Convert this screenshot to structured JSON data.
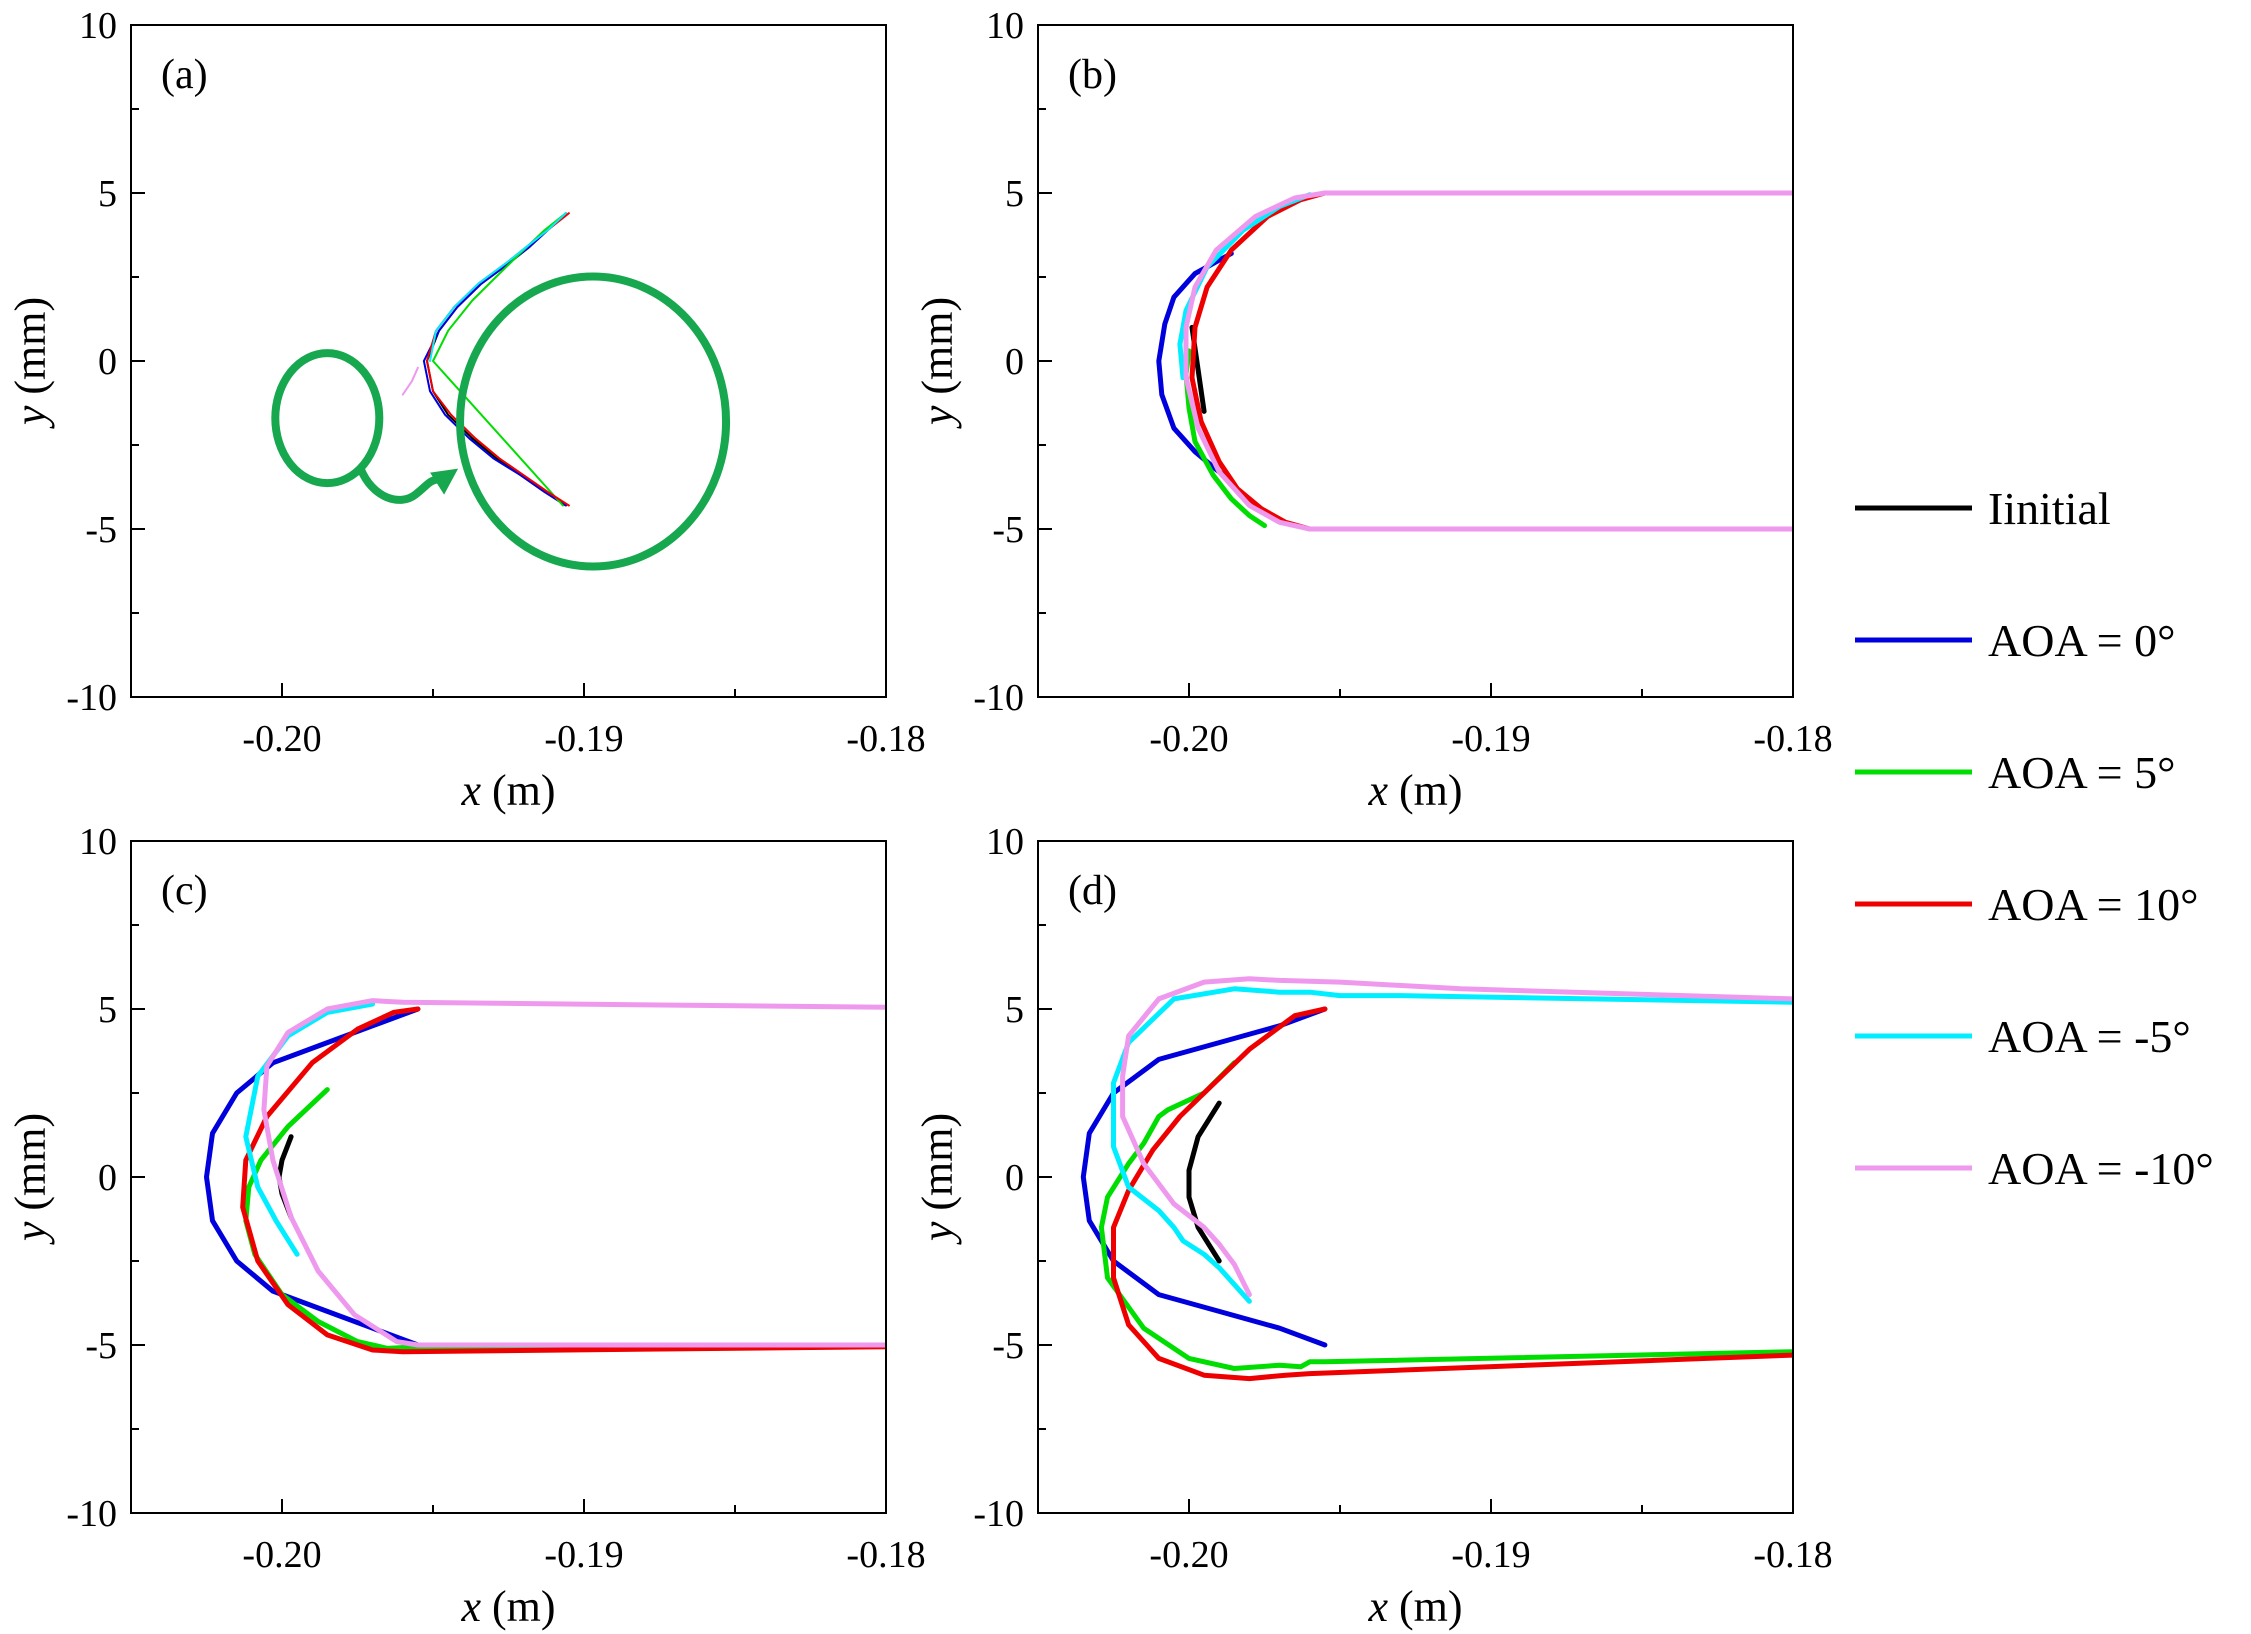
{
  "figure": {
    "legend": [
      {
        "label": "Iinitial",
        "color": "#000000"
      },
      {
        "label": "AOA = 0°",
        "color": "#0000dd"
      },
      {
        "label": "AOA = 5°",
        "color": "#00dd00"
      },
      {
        "label": "AOA = 10°",
        "color": "#ee0000"
      },
      {
        "label": "AOA = -5°",
        "color": "#00eeff"
      },
      {
        "label": "AOA = -10°",
        "color": "#ee99ee"
      }
    ],
    "annotation_color": "#17a84f"
  },
  "chart_data": [
    {
      "type": "line",
      "panel": "(a)",
      "xlabel_var": "x",
      "xlabel_unit": " (m)",
      "ylabel_var": "y",
      "ylabel_unit": " (mm)",
      "xlim": [
        -0.205,
        -0.18
      ],
      "ylim": [
        -10,
        10
      ],
      "xticks": [
        -0.2,
        -0.19,
        -0.18
      ],
      "xtick_labels": [
        "-0.20",
        "-0.19",
        "-0.18"
      ],
      "yticks": [
        -10,
        -5,
        0,
        5,
        10
      ],
      "ytick_labels": [
        "-10",
        "-5",
        "0",
        "5",
        "10"
      ],
      "series": [
        {
          "name": "Iinitial",
          "color": "#000000",
          "x": [
            -0.1906,
            -0.1912,
            -0.1918,
            -0.1925,
            -0.1934,
            -0.1942,
            -0.1948,
            -0.1952,
            -0.195,
            -0.1945,
            -0.1937,
            -0.1929,
            -0.1921,
            -0.1913,
            -0.1906
          ],
          "y": [
            4.4,
            3.9,
            3.4,
            2.9,
            2.3,
            1.6,
            0.9,
            0,
            -0.9,
            -1.6,
            -2.3,
            -2.9,
            -3.4,
            -3.9,
            -4.3
          ]
        },
        {
          "name": "AOA = 0°",
          "color": "#0000dd",
          "x": [
            -0.1906,
            -0.1912,
            -0.1918,
            -0.1925,
            -0.1934,
            -0.1942,
            -0.1948,
            -0.1953,
            -0.1951,
            -0.1946,
            -0.1938,
            -0.193,
            -0.1921,
            -0.1913,
            -0.1906
          ],
          "y": [
            4.4,
            3.9,
            3.4,
            2.9,
            2.3,
            1.6,
            0.9,
            0,
            -0.9,
            -1.6,
            -2.3,
            -2.9,
            -3.4,
            -3.9,
            -4.3
          ]
        },
        {
          "name": "AOA = 5°",
          "color": "#00dd00",
          "x": [
            -0.1906,
            -0.1913,
            -0.192,
            -0.1928,
            -0.1937,
            -0.1945,
            -0.195,
            -0.1907
          ],
          "y": [
            4.4,
            3.9,
            3.3,
            2.6,
            1.8,
            0.9,
            0,
            -4.3
          ]
        },
        {
          "name": "AOA = 10°",
          "color": "#ee0000",
          "x": [
            -0.1905,
            -0.1912,
            -0.1919,
            -0.1926,
            -0.1935,
            -0.1943,
            -0.1949,
            -0.1952,
            -0.195,
            -0.1944,
            -0.1936,
            -0.1928,
            -0.192,
            -0.1912,
            -0.1905
          ],
          "y": [
            4.4,
            3.9,
            3.4,
            2.9,
            2.3,
            1.6,
            0.9,
            0,
            -0.9,
            -1.6,
            -2.3,
            -2.9,
            -3.4,
            -3.9,
            -4.3
          ]
        },
        {
          "name": "AOA = -5°",
          "color": "#00eeff",
          "x": [
            -0.1906,
            -0.1912,
            -0.1919,
            -0.1926,
            -0.1935,
            -0.1943,
            -0.1949,
            -0.1951
          ],
          "y": [
            4.4,
            3.9,
            3.4,
            2.9,
            2.3,
            1.6,
            0.9,
            0
          ]
        },
        {
          "name": "AOA = -10°",
          "color": "#ee99ee",
          "x": [
            -0.1955,
            -0.1957,
            -0.196
          ],
          "y": [
            -0.2,
            -0.6,
            -1.0
          ]
        }
      ]
    },
    {
      "type": "line",
      "panel": "(b)",
      "xlabel_var": "x",
      "xlabel_unit": " (m)",
      "ylabel_var": "y",
      "ylabel_unit": " (mm)",
      "xlim": [
        -0.205,
        -0.18
      ],
      "ylim": [
        -10,
        10
      ],
      "xticks": [
        -0.2,
        -0.19,
        -0.18
      ],
      "xtick_labels": [
        "-0.20",
        "-0.19",
        "-0.18"
      ],
      "yticks": [
        -10,
        -5,
        0,
        5,
        10
      ],
      "ytick_labels": [
        "-10",
        "-5",
        "0",
        "5",
        "10"
      ],
      "series": [
        {
          "name": "Iinitial",
          "color": "#000000",
          "x": [
            -0.1999,
            -0.1995
          ],
          "y": [
            1.0,
            -1.5
          ]
        },
        {
          "name": "AOA = 0°",
          "color": "#0000dd",
          "x": [
            -0.1986,
            -0.1998,
            -0.2005,
            -0.2008,
            -0.201,
            -0.2009,
            -0.2005,
            -0.1998,
            -0.199,
            -0.1985
          ],
          "y": [
            3.2,
            2.6,
            1.9,
            1.1,
            0,
            -1.0,
            -2.0,
            -2.7,
            -3.3,
            -3.7
          ]
        },
        {
          "name": "AOA = 5°",
          "color": "#00dd00",
          "x": [
            -0.2,
            -0.2001,
            -0.2,
            -0.1998,
            -0.1992,
            -0.1986,
            -0.198,
            -0.1975
          ],
          "y": [
            0.3,
            -0.4,
            -1.4,
            -2.4,
            -3.4,
            -4.1,
            -4.6,
            -4.9
          ]
        },
        {
          "name": "AOA = 10°",
          "color": "#ee0000",
          "x": [
            -0.1955,
            -0.1963,
            -0.1974,
            -0.1986,
            -0.1994,
            -0.1998,
            -0.1999,
            -0.1996,
            -0.199,
            -0.1984,
            -0.1976,
            -0.1968,
            -0.196,
            -0.1955
          ],
          "y": [
            5.0,
            4.8,
            4.3,
            3.3,
            2.2,
            1.0,
            -0.5,
            -1.8,
            -3.0,
            -3.8,
            -4.4,
            -4.8,
            -5.0,
            -5.0
          ]
        },
        {
          "name": "AOA = -5°",
          "color": "#00eeff",
          "x": [
            -0.196,
            -0.197,
            -0.1982,
            -0.1994,
            -0.2001,
            -0.2003,
            -0.2002
          ],
          "y": [
            4.95,
            4.6,
            3.9,
            2.8,
            1.5,
            0.5,
            -0.5
          ]
        },
        {
          "name": "AOA = -10°",
          "color": "#ee99ee",
          "x": [
            -0.18,
            -0.1955,
            -0.1965,
            -0.1978,
            -0.1991,
            -0.1998,
            -0.2001,
            -0.2001,
            -0.1997,
            -0.199,
            -0.198,
            -0.197,
            -0.196,
            -0.1955,
            -0.18
          ],
          "y": [
            5.0,
            5.0,
            4.85,
            4.3,
            3.3,
            2.2,
            1.0,
            -0.5,
            -2.0,
            -3.3,
            -4.3,
            -4.8,
            -5.0,
            -5.0,
            -5.0
          ]
        }
      ]
    },
    {
      "type": "line",
      "panel": "(c)",
      "xlabel_var": "x",
      "xlabel_unit": " (m)",
      "ylabel_var": "y",
      "ylabel_unit": " (mm)",
      "xlim": [
        -0.205,
        -0.18
      ],
      "ylim": [
        -10,
        10
      ],
      "xticks": [
        -0.2,
        -0.19,
        -0.18
      ],
      "xtick_labels": [
        "-0.20",
        "-0.19",
        "-0.18"
      ],
      "yticks": [
        -10,
        -5,
        0,
        5,
        10
      ],
      "ytick_labels": [
        "-10",
        "-5",
        "0",
        "5",
        "10"
      ],
      "series": [
        {
          "name": "Iinitial",
          "color": "#000000",
          "x": [
            -0.1997,
            -0.2,
            -0.2001,
            -0.2,
            -0.1997
          ],
          "y": [
            1.2,
            0.5,
            0,
            -0.5,
            -1.2
          ]
        },
        {
          "name": "AOA = 0°",
          "color": "#0000dd",
          "x": [
            -0.1955,
            -0.197,
            -0.1988,
            -0.2003,
            -0.2015,
            -0.2023,
            -0.2025,
            -0.2023,
            -0.2015,
            -0.2003,
            -0.1988,
            -0.197,
            -0.1955
          ],
          "y": [
            5.0,
            4.5,
            3.9,
            3.4,
            2.5,
            1.3,
            0,
            -1.3,
            -2.5,
            -3.4,
            -3.9,
            -4.5,
            -5.0
          ]
        },
        {
          "name": "AOA = 5°",
          "color": "#00dd00",
          "x": [
            -0.1985,
            -0.1998,
            -0.2007,
            -0.2011,
            -0.2012,
            -0.2009,
            -0.2,
            -0.1988,
            -0.1975,
            -0.1965,
            -0.1955,
            -0.18
          ],
          "y": [
            2.6,
            1.5,
            0.5,
            -0.3,
            -1.3,
            -2.3,
            -3.5,
            -4.3,
            -4.9,
            -5.1,
            -5.05,
            -5.0
          ]
        },
        {
          "name": "AOA = 10°",
          "color": "#ee0000",
          "x": [
            -0.1955,
            -0.1963,
            -0.1975,
            -0.199,
            -0.2005,
            -0.2012,
            -0.2013,
            -0.2008,
            -0.1998,
            -0.1985,
            -0.197,
            -0.196,
            -0.18
          ],
          "y": [
            5.0,
            4.9,
            4.4,
            3.4,
            1.8,
            0.5,
            -0.9,
            -2.5,
            -3.8,
            -4.7,
            -5.15,
            -5.2,
            -5.05
          ]
        },
        {
          "name": "AOA = -5°",
          "color": "#00eeff",
          "x": [
            -0.197,
            -0.1985,
            -0.1998,
            -0.2008,
            -0.2012,
            -0.2008,
            -0.2002,
            -0.1995
          ],
          "y": [
            5.15,
            4.9,
            4.2,
            3.0,
            1.2,
            -0.3,
            -1.3,
            -2.3
          ]
        },
        {
          "name": "AOA = -10°",
          "color": "#ee99ee",
          "x": [
            -0.18,
            -0.196,
            -0.197,
            -0.1985,
            -0.1998,
            -0.2005,
            -0.2006,
            -0.2003,
            -0.1997,
            -0.1988,
            -0.1976,
            -0.1962,
            -0.1955,
            -0.18
          ],
          "y": [
            5.05,
            5.2,
            5.25,
            5.0,
            4.3,
            3.3,
            2.0,
            0.5,
            -1.2,
            -2.8,
            -4.1,
            -4.9,
            -5.0,
            -5.0
          ]
        }
      ]
    },
    {
      "type": "line",
      "panel": "(d)",
      "xlabel_var": "x",
      "xlabel_unit": " (m)",
      "ylabel_var": "y",
      "ylabel_unit": " (mm)",
      "xlim": [
        -0.205,
        -0.18
      ],
      "ylim": [
        -10,
        10
      ],
      "xticks": [
        -0.2,
        -0.19,
        -0.18
      ],
      "xtick_labels": [
        "-0.20",
        "-0.19",
        "-0.18"
      ],
      "yticks": [
        -10,
        -5,
        0,
        5,
        10
      ],
      "ytick_labels": [
        "-10",
        "-5",
        "0",
        "5",
        "10"
      ],
      "series": [
        {
          "name": "Iinitial",
          "color": "#000000",
          "x": [
            -0.199,
            -0.1997,
            -0.2,
            -0.2,
            -0.1997,
            -0.199
          ],
          "y": [
            2.2,
            1.2,
            0.2,
            -0.6,
            -1.5,
            -2.5
          ]
        },
        {
          "name": "AOA = 0°",
          "color": "#0000dd",
          "x": [
            -0.1955,
            -0.197,
            -0.199,
            -0.201,
            -0.2025,
            -0.2033,
            -0.2035,
            -0.2033,
            -0.2025,
            -0.201,
            -0.199,
            -0.197,
            -0.1955
          ],
          "y": [
            5.0,
            4.5,
            4.0,
            3.5,
            2.5,
            1.3,
            0,
            -1.3,
            -2.5,
            -3.5,
            -4.0,
            -4.5,
            -5.0
          ]
        },
        {
          "name": "AOA = 5°",
          "color": "#00dd00",
          "x": [
            -0.1985,
            -0.1995,
            -0.2007,
            -0.201,
            -0.2015,
            -0.202,
            -0.2027,
            -0.2029,
            -0.2027,
            -0.2015,
            -0.2,
            -0.1985,
            -0.197,
            -0.1963,
            -0.196,
            -0.1955,
            -0.18
          ],
          "y": [
            3.4,
            2.5,
            2.0,
            1.8,
            1.0,
            0.4,
            -0.6,
            -1.5,
            -3.0,
            -4.5,
            -5.4,
            -5.7,
            -5.6,
            -5.65,
            -5.5,
            -5.5,
            -5.2
          ]
        },
        {
          "name": "AOA = 10°",
          "color": "#ee0000",
          "x": [
            -0.1955,
            -0.1965,
            -0.198,
            -0.1995,
            -0.2003,
            -0.2012,
            -0.202,
            -0.2025,
            -0.2025,
            -0.202,
            -0.201,
            -0.1995,
            -0.198,
            -0.1968,
            -0.196,
            -0.18
          ],
          "y": [
            5.0,
            4.8,
            3.8,
            2.5,
            1.8,
            0.8,
            -0.4,
            -1.5,
            -3.0,
            -4.4,
            -5.4,
            -5.9,
            -6.0,
            -5.9,
            -5.85,
            -5.3
          ]
        },
        {
          "name": "AOA = -5°",
          "color": "#00eeff",
          "x": [
            -0.18,
            -0.193,
            -0.195,
            -0.196,
            -0.197,
            -0.1985,
            -0.2005,
            -0.202,
            -0.2025,
            -0.2025,
            -0.202,
            -0.201,
            -0.2005,
            -0.2002,
            -0.1995,
            -0.199,
            -0.198
          ],
          "y": [
            5.2,
            5.4,
            5.4,
            5.5,
            5.5,
            5.6,
            5.3,
            4.0,
            2.8,
            0.9,
            -0.3,
            -1.0,
            -1.5,
            -1.9,
            -2.3,
            -2.7,
            -3.7
          ]
        },
        {
          "name": "AOA = -10°",
          "color": "#ee99ee",
          "x": [
            -0.18,
            -0.191,
            -0.195,
            -0.197,
            -0.198,
            -0.1995,
            -0.201,
            -0.202,
            -0.2022,
            -0.2022,
            -0.2015,
            -0.2005,
            -0.1995,
            -0.199,
            -0.1985,
            -0.198
          ],
          "y": [
            5.3,
            5.6,
            5.8,
            5.85,
            5.9,
            5.8,
            5.3,
            4.2,
            3.0,
            1.8,
            0.4,
            -0.8,
            -1.5,
            -2.0,
            -2.6,
            -3.5
          ]
        }
      ]
    }
  ]
}
